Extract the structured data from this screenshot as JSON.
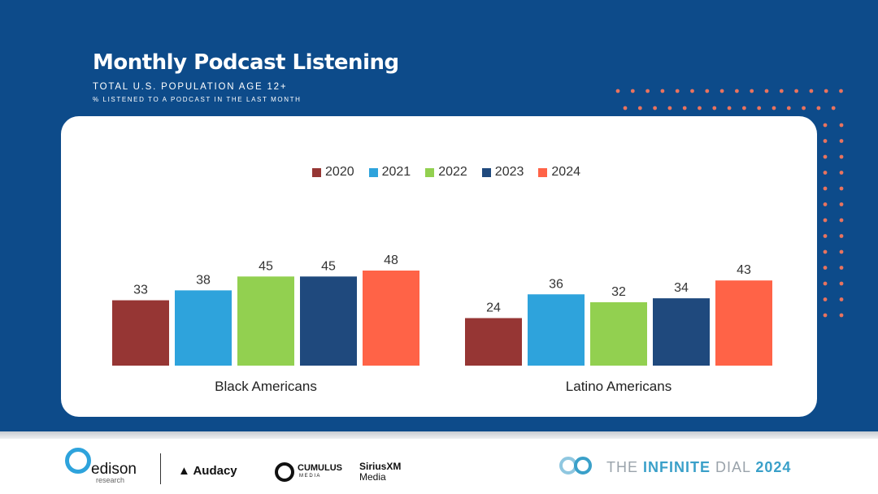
{
  "title": "Monthly Podcast Listening",
  "subtitle": "TOTAL U.S. POPULATION AGE 12+",
  "subtitle2": "% LISTENED TO A PODCAST IN THE LAST MONTH",
  "chart_data": {
    "type": "bar",
    "categories": [
      "Black Americans",
      "Latino Americans"
    ],
    "series": [
      {
        "name": "2020",
        "color": "#963634",
        "values": [
          33,
          24
        ]
      },
      {
        "name": "2021",
        "color": "#2ea3dc",
        "values": [
          38,
          36
        ]
      },
      {
        "name": "2022",
        "color": "#92d050",
        "values": [
          45,
          32
        ]
      },
      {
        "name": "2023",
        "color": "#1f497d",
        "values": [
          45,
          34
        ]
      },
      {
        "name": "2024",
        "color": "#ff6347",
        "values": [
          48,
          43
        ]
      }
    ],
    "ylim": [
      0,
      55
    ],
    "legend": "top-center",
    "grid": false
  },
  "footer": {
    "edison": "edison",
    "edison_sub": "research",
    "audacy": "Audacy",
    "cumulus": "CUMULUS",
    "cumulus_sub": "M E D I A",
    "sirius": "SiriusXM",
    "sirius_sub": "Media",
    "dial": "THE ",
    "dial_b": "INFINITE",
    "dial2": " DIAL",
    "dial_year": "2024"
  },
  "colors": {
    "background": "#0d4b8a",
    "dots": "#e8735f"
  }
}
